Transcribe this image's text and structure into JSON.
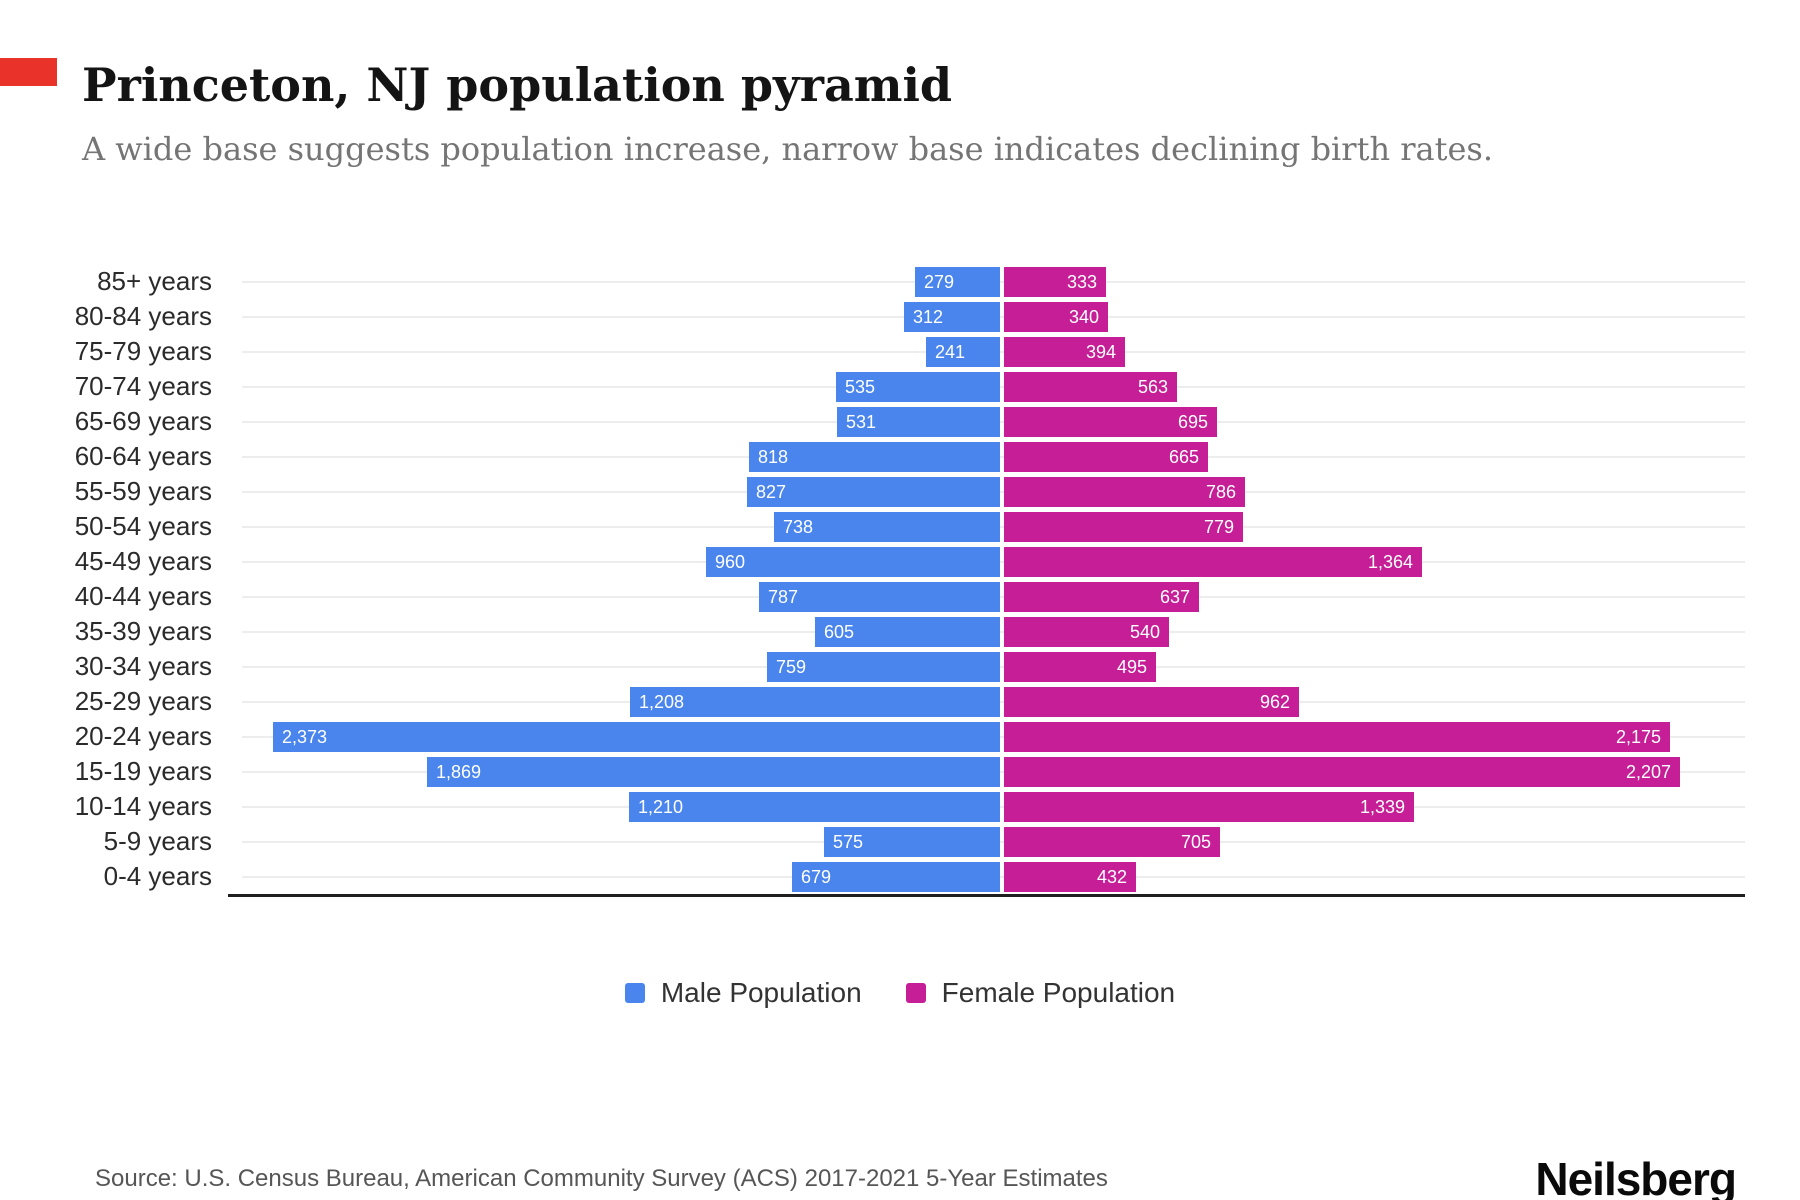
{
  "recording_indicator": {
    "color": "#e8322a"
  },
  "header": {
    "title": "Princeton, NJ population pyramid",
    "subtitle": "A wide base suggests population increase, narrow base indicates declining birth rates."
  },
  "chart_data": {
    "type": "bar",
    "variant": "population-pyramid",
    "orientation": "horizontal",
    "grid": true,
    "categories": [
      "85+ years",
      "80-84 years",
      "75-79 years",
      "70-74 years",
      "65-69 years",
      "60-64 years",
      "55-59 years",
      "50-54 years",
      "45-49 years",
      "40-44 years",
      "35-39 years",
      "30-34 years",
      "25-29 years",
      "20-24 years",
      "15-19 years",
      "10-14 years",
      "5-9 years",
      "0-4 years"
    ],
    "series": [
      {
        "name": "Male Population",
        "side": "left",
        "color": "#4985ED",
        "values": [
          279,
          312,
          241,
          535,
          531,
          818,
          827,
          738,
          960,
          787,
          605,
          759,
          1208,
          2373,
          1869,
          1210,
          575,
          679
        ]
      },
      {
        "name": "Female Population",
        "side": "right",
        "color": "#C51E96",
        "values": [
          333,
          340,
          394,
          563,
          695,
          665,
          786,
          779,
          1364,
          637,
          540,
          495,
          962,
          2175,
          2207,
          1339,
          705,
          432
        ]
      }
    ],
    "value_labels_inside_bars": true,
    "axis_max_per_side": 2460
  },
  "legend": {
    "items": [
      {
        "label": "Male Population",
        "color": "#4985ED"
      },
      {
        "label": "Female Population",
        "color": "#C51E96"
      }
    ]
  },
  "footer": {
    "source": "Source: U.S. Census Bureau, American Community Survey (ACS) 2017-2021 5-Year Estimates",
    "brand": "Neilsberg"
  }
}
